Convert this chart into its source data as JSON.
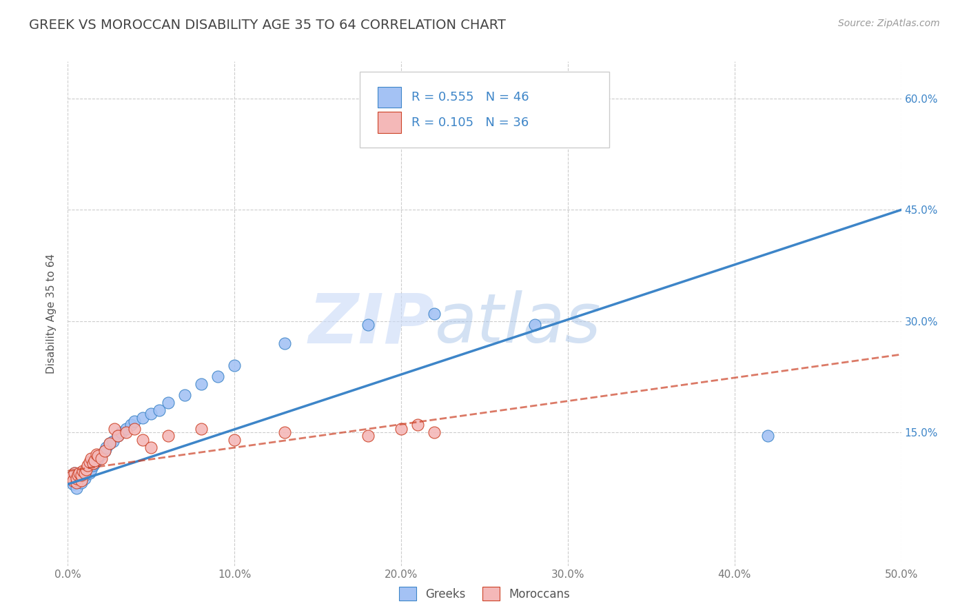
{
  "title": "GREEK VS MOROCCAN DISABILITY AGE 35 TO 64 CORRELATION CHART",
  "source": "Source: ZipAtlas.com",
  "ylabel": "Disability Age 35 to 64",
  "xlim": [
    0.0,
    0.5
  ],
  "ylim": [
    -0.03,
    0.65
  ],
  "xticks": [
    0.0,
    0.1,
    0.2,
    0.3,
    0.4,
    0.5
  ],
  "yticks": [
    0.15,
    0.3,
    0.45,
    0.6
  ],
  "ytick_labels_right": [
    "15.0%",
    "30.0%",
    "45.0%",
    "60.0%"
  ],
  "xtick_labels": [
    "0.0%",
    "10.0%",
    "20.0%",
    "30.0%",
    "40.0%",
    "50.0%"
  ],
  "greek_R": 0.555,
  "greek_N": 46,
  "moroccan_R": 0.105,
  "moroccan_N": 36,
  "greek_color": "#a4c2f4",
  "moroccan_color": "#f4b8b8",
  "greek_line_color": "#3d85c8",
  "moroccan_line_color": "#cc4125",
  "background_color": "#ffffff",
  "watermark_zip": "ZIP",
  "watermark_atlas": "atlas",
  "grid_color": "#cccccc",
  "greek_x": [
    0.002,
    0.003,
    0.004,
    0.005,
    0.005,
    0.005,
    0.006,
    0.007,
    0.008,
    0.008,
    0.009,
    0.01,
    0.01,
    0.011,
    0.012,
    0.013,
    0.014,
    0.015,
    0.015,
    0.016,
    0.017,
    0.018,
    0.019,
    0.02,
    0.022,
    0.023,
    0.025,
    0.027,
    0.03,
    0.032,
    0.035,
    0.038,
    0.04,
    0.045,
    0.05,
    0.055,
    0.06,
    0.07,
    0.08,
    0.09,
    0.1,
    0.13,
    0.18,
    0.22,
    0.28,
    0.42
  ],
  "greek_y": [
    0.085,
    0.08,
    0.095,
    0.075,
    0.085,
    0.092,
    0.088,
    0.095,
    0.082,
    0.09,
    0.095,
    0.088,
    0.092,
    0.098,
    0.1,
    0.095,
    0.1,
    0.105,
    0.11,
    0.108,
    0.112,
    0.115,
    0.118,
    0.12,
    0.125,
    0.13,
    0.135,
    0.138,
    0.145,
    0.15,
    0.155,
    0.16,
    0.165,
    0.17,
    0.175,
    0.18,
    0.19,
    0.2,
    0.215,
    0.225,
    0.24,
    0.27,
    0.295,
    0.31,
    0.295,
    0.145
  ],
  "moroccan_x": [
    0.002,
    0.003,
    0.004,
    0.005,
    0.005,
    0.006,
    0.007,
    0.008,
    0.008,
    0.009,
    0.01,
    0.011,
    0.012,
    0.013,
    0.014,
    0.015,
    0.016,
    0.017,
    0.018,
    0.02,
    0.022,
    0.025,
    0.028,
    0.03,
    0.035,
    0.04,
    0.045,
    0.05,
    0.06,
    0.08,
    0.1,
    0.13,
    0.18,
    0.2,
    0.21,
    0.22
  ],
  "moroccan_y": [
    0.09,
    0.085,
    0.095,
    0.082,
    0.088,
    0.092,
    0.095,
    0.085,
    0.092,
    0.098,
    0.095,
    0.1,
    0.105,
    0.11,
    0.115,
    0.108,
    0.112,
    0.12,
    0.118,
    0.115,
    0.125,
    0.135,
    0.155,
    0.145,
    0.15,
    0.155,
    0.14,
    0.13,
    0.145,
    0.155,
    0.14,
    0.15,
    0.145,
    0.155,
    0.16,
    0.15
  ],
  "greek_line_x0": 0.0,
  "greek_line_y0": 0.08,
  "greek_line_x1": 0.5,
  "greek_line_y1": 0.45,
  "moroccan_line_x0": 0.0,
  "moroccan_line_y0": 0.098,
  "moroccan_line_x1": 0.5,
  "moroccan_line_y1": 0.255
}
